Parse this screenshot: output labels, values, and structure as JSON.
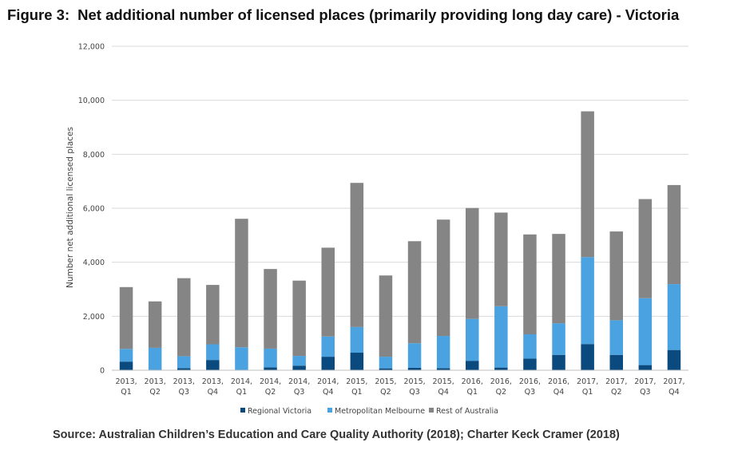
{
  "figure": {
    "number": "Figure 3:",
    "title": "Net additional number of licensed places (primarily providing long day care) - Victoria",
    "source": "Source: Australian Children’s Education and Care Quality Authority (2018); Charter Keck Cramer (2018)"
  },
  "colors": {
    "regional": "#0b4a7e",
    "metro": "#4aa3e0",
    "rest": "#858585",
    "grid": "#d9d9d9",
    "axis": "#bfbfbf"
  },
  "chart_data": {
    "type": "bar",
    "stacked": true,
    "title": "",
    "xlabel": "",
    "ylabel": "Number net additional licensed places",
    "ylim": [
      0,
      12000
    ],
    "yticks": [
      0,
      2000,
      4000,
      6000,
      8000,
      10000,
      12000
    ],
    "ytick_labels": [
      "0",
      "2,000",
      "4,000",
      "6,000",
      "8,000",
      "10,000",
      "12,000"
    ],
    "grid": true,
    "legend_position": "bottom",
    "categories": [
      "2013, Q1",
      "2013, Q2",
      "2013, Q3",
      "2013, Q4",
      "2014, Q1",
      "2014, Q2",
      "2014, Q3",
      "2014, Q4",
      "2015, Q1",
      "2015, Q2",
      "2015, Q3",
      "2015, Q4",
      "2016, Q1",
      "2016, Q2",
      "2016, Q3",
      "2016, Q4",
      "2017, Q1",
      "2017, Q2",
      "2017, Q3",
      "2017, Q4"
    ],
    "series": [
      {
        "name": "Regional Victoria",
        "values": [
          320,
          0,
          80,
          380,
          0,
          110,
          170,
          500,
          650,
          70,
          90,
          80,
          350,
          100,
          430,
          570,
          970,
          570,
          190,
          750
        ]
      },
      {
        "name": "Metropolitan Melbourne",
        "values": [
          470,
          830,
          440,
          580,
          850,
          690,
          360,
          750,
          950,
          430,
          910,
          1190,
          1550,
          2270,
          900,
          1170,
          3220,
          1280,
          2480,
          2440
        ]
      },
      {
        "name": "Rest of Australia",
        "values": [
          2290,
          1720,
          2890,
          2200,
          4760,
          2950,
          2790,
          3290,
          5340,
          3010,
          3780,
          4310,
          4110,
          3470,
          3700,
          3310,
          5400,
          3290,
          3670,
          3670
        ]
      }
    ]
  }
}
